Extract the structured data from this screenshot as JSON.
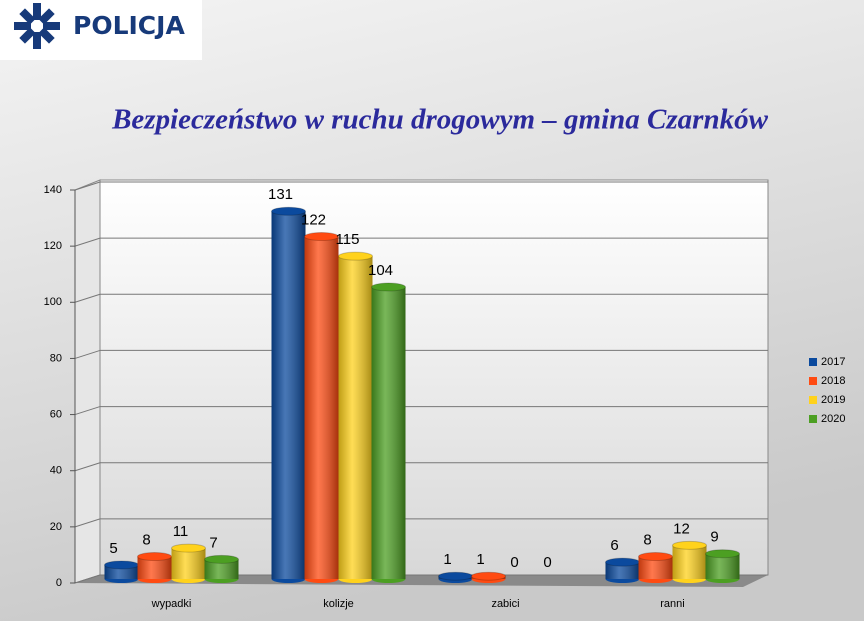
{
  "logo_text": "POLICJA",
  "chart_data": {
    "type": "bar3d",
    "title": "Bezpieczeństwo w ruchu drogowym – gmina Czarnków",
    "categories": [
      "wypadki",
      "kolizje",
      "zabici",
      "ranni"
    ],
    "series": [
      {
        "name": "2017",
        "color": "#0b4a9e",
        "values": [
          5,
          131,
          1,
          6
        ]
      },
      {
        "name": "2018",
        "color": "#ff4b12",
        "values": [
          8,
          122,
          1,
          8
        ]
      },
      {
        "name": "2019",
        "color": "#ffd21c",
        "values": [
          11,
          115,
          0,
          12
        ]
      },
      {
        "name": "2020",
        "color": "#4c9f22",
        "values": [
          7,
          104,
          0,
          9
        ]
      }
    ],
    "ylim": [
      0,
      140
    ],
    "yticks": [
      0,
      20,
      40,
      60,
      80,
      100,
      120,
      140
    ],
    "grid": true,
    "legend": "right"
  }
}
